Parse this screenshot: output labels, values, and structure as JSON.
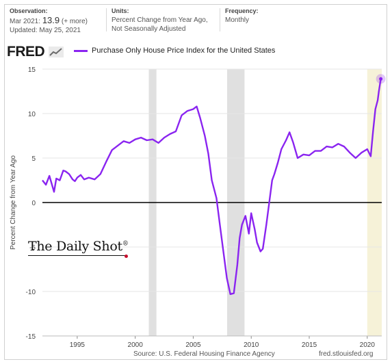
{
  "header": {
    "observation_label": "Observation:",
    "observation_date": "Mar 2021:",
    "observation_value": "13.9",
    "observation_more": "(+ more)",
    "updated": "Updated: May 25, 2021",
    "units_label": "Units:",
    "units_line1": "Percent Change from Year Ago,",
    "units_line2": "Not Seasonally Adjusted",
    "frequency_label": "Frequency:",
    "frequency_value": "Monthly"
  },
  "logo": "FRED",
  "watermark": "The Daily Shot",
  "watermark_mark": "®",
  "footer": {
    "source": "Source: U.S. Federal Housing Finance Agency",
    "site": "fred.stlouisfed.org"
  },
  "colors": {
    "series": "#8a24f0",
    "recession": "#e0e0e0",
    "highlight": "#f6f2d8",
    "zero_line": "#000000"
  },
  "chart_data": {
    "type": "line",
    "title": "",
    "ylabel": "Percent Change from Year Ago",
    "xlabel": "",
    "xlim": [
      1992.0,
      2021.25
    ],
    "ylim": [
      -15,
      15
    ],
    "yticks": [
      15,
      10,
      5,
      0,
      -5,
      -10,
      -15
    ],
    "xticks": [
      1995,
      2000,
      2005,
      2010,
      2015,
      2020
    ],
    "grid": "horizontal",
    "legend": "top-left",
    "recessions": [
      [
        2001.17,
        2001.83
      ],
      [
        2007.92,
        2009.42
      ]
    ],
    "highlight_range": [
      2020.0,
      2021.25
    ],
    "series": [
      {
        "name": "Purchase Only House Price Index for the United States",
        "x": [
          1992.0,
          1992.3,
          1992.6,
          1993.0,
          1993.2,
          1993.5,
          1993.8,
          1994.0,
          1994.3,
          1994.6,
          1994.8,
          1995.0,
          1995.3,
          1995.6,
          1996.0,
          1996.5,
          1997.0,
          1997.5,
          1998.0,
          1998.5,
          1999.0,
          1999.5,
          2000.0,
          2000.5,
          2001.0,
          2001.5,
          2002.0,
          2002.5,
          2003.0,
          2003.5,
          2004.0,
          2004.5,
          2005.0,
          2005.3,
          2005.6,
          2006.0,
          2006.3,
          2006.6,
          2007.0,
          2007.3,
          2007.6,
          2007.9,
          2008.2,
          2008.5,
          2008.8,
          2009.0,
          2009.2,
          2009.5,
          2009.8,
          2010.0,
          2010.3,
          2010.5,
          2010.8,
          2011.0,
          2011.3,
          2011.6,
          2011.8,
          2012.0,
          2012.3,
          2012.6,
          2013.0,
          2013.3,
          2013.6,
          2014.0,
          2014.5,
          2015.0,
          2015.5,
          2016.0,
          2016.5,
          2017.0,
          2017.5,
          2018.0,
          2018.5,
          2019.0,
          2019.5,
          2020.0,
          2020.3,
          2020.5,
          2020.7,
          2020.9,
          2021.0,
          2021.17
        ],
        "values": [
          2.5,
          2.0,
          3.0,
          1.2,
          2.7,
          2.5,
          3.6,
          3.5,
          3.2,
          2.6,
          2.4,
          2.8,
          3.1,
          2.6,
          2.8,
          2.6,
          3.2,
          4.6,
          5.9,
          6.4,
          6.9,
          6.7,
          7.1,
          7.3,
          7.0,
          7.1,
          6.7,
          7.3,
          7.7,
          8.0,
          9.8,
          10.3,
          10.5,
          10.8,
          9.5,
          7.5,
          5.5,
          2.5,
          0.5,
          -2.5,
          -5.5,
          -8.5,
          -10.3,
          -10.2,
          -7.0,
          -4.0,
          -2.5,
          -1.5,
          -3.5,
          -1.2,
          -3.0,
          -4.5,
          -5.5,
          -5.2,
          -2.5,
          0.5,
          2.5,
          3.2,
          4.5,
          6.0,
          7.0,
          7.9,
          6.8,
          5.0,
          5.4,
          5.3,
          5.8,
          5.8,
          6.3,
          6.2,
          6.6,
          6.3,
          5.6,
          5.0,
          5.6,
          6.0,
          5.2,
          8.0,
          10.5,
          11.5,
          12.5,
          13.9
        ]
      }
    ]
  }
}
